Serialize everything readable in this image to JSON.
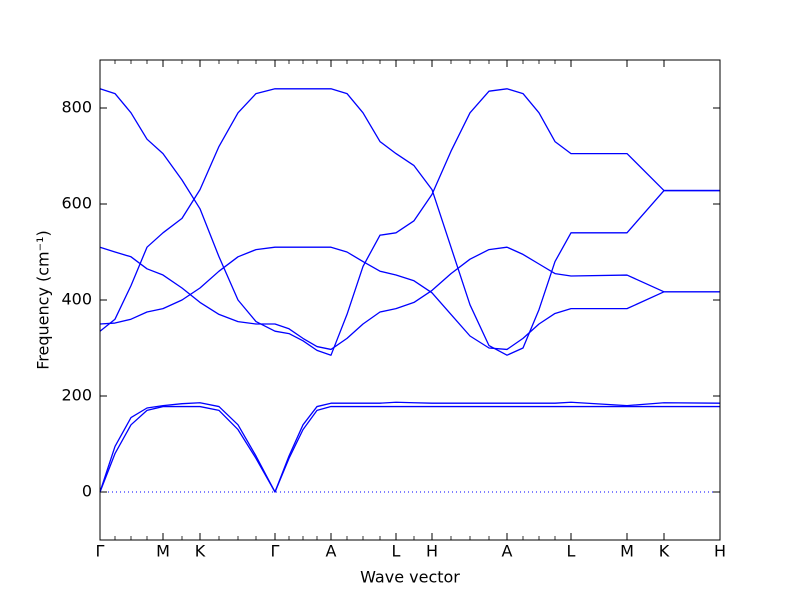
{
  "chart_data": {
    "type": "line",
    "xlabel": "Wave vector",
    "ylabel": "Frequency (cm⁻¹)",
    "x": [
      0,
      0.15,
      0.31,
      0.47,
      0.63,
      0.82,
      1.0,
      1.19,
      1.38,
      1.56,
      1.75,
      1.89,
      2.03,
      2.17,
      2.31,
      2.47,
      2.63,
      2.8,
      2.96,
      3.14,
      3.32,
      3.51,
      3.7,
      3.89,
      4.07,
      4.23,
      4.39,
      4.55,
      4.71,
      5.27,
      5.64,
      6.2
    ],
    "series": [
      {
        "color": "#0000ff",
        "values": [
          0,
          80,
          140,
          170,
          178,
          178,
          178,
          170,
          130,
          70,
          0,
          70,
          130,
          170,
          178,
          178,
          178,
          178,
          178,
          178,
          178,
          178,
          178,
          178,
          178,
          178,
          178,
          178,
          178,
          178,
          178,
          178
        ]
      },
      {
        "color": "#0000ff",
        "values": [
          0,
          95,
          155,
          175,
          180,
          184,
          186,
          178,
          140,
          75,
          0,
          75,
          140,
          178,
          185,
          185,
          185,
          185,
          187,
          186,
          185,
          185,
          185,
          185,
          185,
          185,
          185,
          185,
          187,
          180,
          186,
          185
        ]
      },
      {
        "color": "#0000ff",
        "values": [
          840,
          830,
          790,
          735,
          705,
          650,
          590,
          490,
          400,
          355,
          335,
          330,
          315,
          295,
          285,
          370,
          470,
          535,
          540,
          565,
          620,
          710,
          790,
          835,
          840,
          830,
          790,
          730,
          705,
          705,
          628,
          628
        ]
      },
      {
        "color": "#0000ff",
        "values": [
          335,
          360,
          430,
          510,
          540,
          570,
          630,
          720,
          790,
          830,
          840,
          840,
          840,
          840,
          840,
          830,
          790,
          730,
          705,
          680,
          630,
          510,
          390,
          305,
          285,
          300,
          380,
          480,
          540,
          540,
          628,
          628
        ]
      },
      {
        "color": "#0000ff",
        "values": [
          510,
          500,
          490,
          465,
          452,
          425,
          395,
          370,
          355,
          350,
          350,
          340,
          320,
          303,
          297,
          320,
          350,
          375,
          382,
          395,
          420,
          455,
          485,
          505,
          510,
          495,
          475,
          455,
          450,
          452,
          417,
          417
        ]
      },
      {
        "color": "#0000ff",
        "values": [
          350,
          352,
          360,
          375,
          382,
          400,
          425,
          460,
          490,
          505,
          510,
          510,
          510,
          510,
          510,
          500,
          480,
          460,
          452,
          440,
          415,
          370,
          325,
          300,
          297,
          320,
          350,
          372,
          382,
          382,
          417,
          417
        ]
      }
    ],
    "xlim": [
      0,
      6.2
    ],
    "xticks": [
      {
        "value": 0,
        "label": "Γ"
      },
      {
        "value": 0.63,
        "label": "M"
      },
      {
        "value": 1.0,
        "label": "K"
      },
      {
        "value": 1.75,
        "label": "Γ"
      },
      {
        "value": 2.31,
        "label": "A"
      },
      {
        "value": 2.96,
        "label": "L"
      },
      {
        "value": 3.32,
        "label": "H"
      },
      {
        "value": 4.07,
        "label": "A"
      },
      {
        "value": 4.71,
        "label": "L"
      },
      {
        "value": 5.27,
        "label": "M"
      },
      {
        "value": 5.64,
        "label": "K"
      },
      {
        "value": 6.2,
        "label": "H"
      }
    ],
    "ylim": [
      -100,
      900
    ],
    "yticks": [
      0,
      200,
      400,
      600,
      800
    ],
    "zero_line": true,
    "zero_line_color": "#0000ff"
  }
}
